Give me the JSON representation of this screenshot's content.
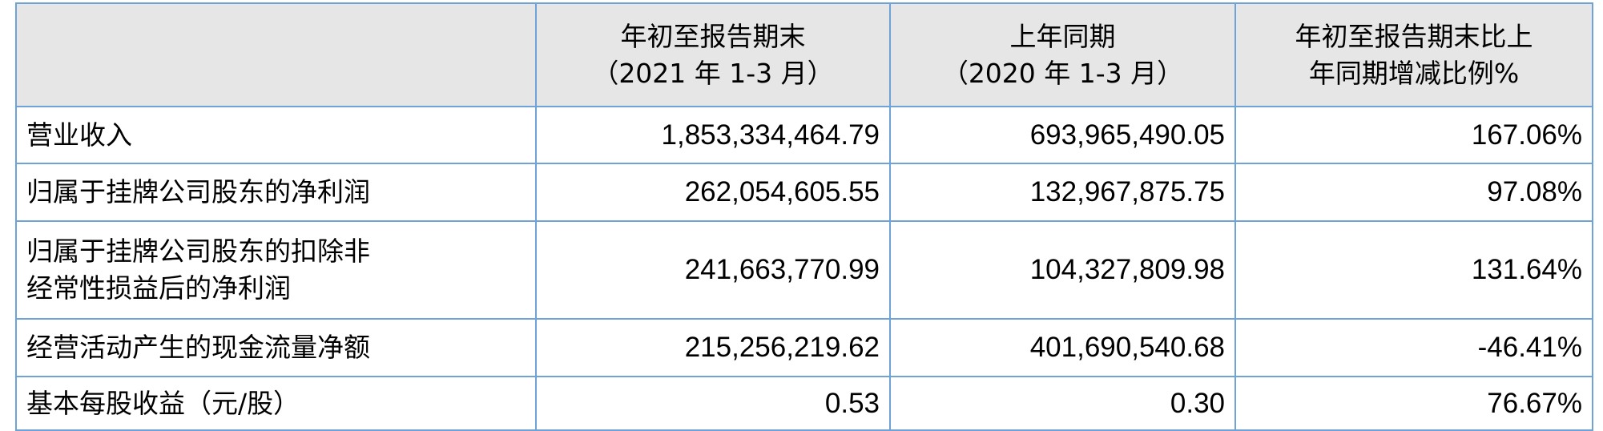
{
  "header": {
    "col0": "",
    "col1": [
      "年初至报告期末",
      "（2021 年 1-3 月）"
    ],
    "col2": [
      "上年同期",
      "（2020 年 1-3 月）"
    ],
    "col3": [
      "年初至报告期末比上",
      "年同期增减比例%"
    ]
  },
  "rows": [
    {
      "label": [
        "营业收入"
      ],
      "current": "1,853,334,464.79",
      "prior": "693,965,490.05",
      "change": "167.06%"
    },
    {
      "label": [
        "归属于挂牌公司股东的净利润"
      ],
      "current": "262,054,605.55",
      "prior": "132,967,875.75",
      "change": "97.08%"
    },
    {
      "label": [
        "归属于挂牌公司股东的扣除非",
        "经常性损益后的净利润"
      ],
      "current": "241,663,770.99",
      "prior": "104,327,809.98",
      "change": "131.64%"
    },
    {
      "label": [
        "经营活动产生的现金流量净额"
      ],
      "current": "215,256,219.62",
      "prior": "401,690,540.68",
      "change": "-46.41%"
    },
    {
      "label": [
        "基本每股收益（元/股）"
      ],
      "current": "0.53",
      "prior": "0.30",
      "change": "76.67%"
    }
  ]
}
